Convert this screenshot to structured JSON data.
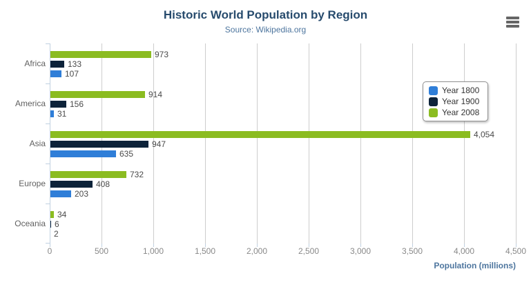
{
  "header": {
    "title": "Historic World Population by Region",
    "subtitle": "Source: Wikipedia.org"
  },
  "icons": {
    "context_menu": "hamburger-icon"
  },
  "palette": {
    "title_text": "#274b6d",
    "subtitle_text": "#4d759e",
    "axis_title_text": "#4d759e",
    "category_label": "#606060",
    "axis_tick_label": "#888888",
    "data_label": "#4a4a4a",
    "grid_line": "#CDCDCD",
    "axis_line": "#C0D0E0",
    "legend_border": "#909090",
    "menu_icon": "#666666"
  },
  "chart_data": {
    "type": "bar",
    "title": "Historic World Population by Region",
    "subtitle": "Source: Wikipedia.org",
    "categories": [
      "Africa",
      "America",
      "Asia",
      "Europe",
      "Oceania"
    ],
    "series": [
      {
        "name": "Year 1800",
        "color": "#2f7ed8",
        "values": [
          107,
          31,
          635,
          203,
          2
        ]
      },
      {
        "name": "Year 1900",
        "color": "#0d233a",
        "values": [
          133,
          156,
          947,
          408,
          6
        ]
      },
      {
        "name": "Year 2008",
        "color": "#8bbc21",
        "values": [
          973,
          914,
          4054,
          732,
          34
        ]
      }
    ],
    "series_display_order": "reversed-top-to-bottom",
    "data_labels": true,
    "xlabel": "Population (millions)",
    "ylabel": "",
    "xlim": [
      0,
      4500
    ],
    "x_ticks": [
      "0",
      "500",
      "1,000",
      "1,500",
      "2,000",
      "2,500",
      "3,000",
      "3,500",
      "4,000",
      "4,500"
    ],
    "grid": true,
    "legend_position": "right-inside"
  }
}
